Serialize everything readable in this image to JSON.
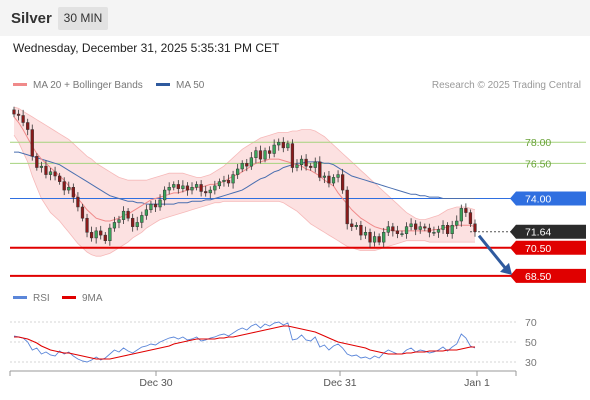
{
  "header": {
    "title": "Silver",
    "timeframe": "30 MIN"
  },
  "datetime": "Wednesday, December 31, 2025 5:35:31 PM CET",
  "legend": [
    {
      "label": "MA 20 + Bollinger Bands",
      "color": "#f08a8a"
    },
    {
      "label": "MA 50",
      "color": "#2f5a9e"
    }
  ],
  "credit": "Research © 2025 Trading Central",
  "rsi_legend": [
    {
      "label": "RSI",
      "color": "#5b86d9"
    },
    {
      "label": "9MA",
      "color": "#e00000"
    }
  ],
  "chart_data": [
    {
      "type": "candlestick",
      "title": "Silver",
      "x_tick_labels": [
        "Dec 30",
        "Dec 31",
        "Jan 1"
      ],
      "ylim": [
        67.5,
        81.0
      ],
      "current_price": 71.64,
      "levels": [
        {
          "value": 78.0,
          "label": "78.00",
          "kind": "resistance"
        },
        {
          "value": 76.5,
          "label": "76.50",
          "kind": "resistance"
        },
        {
          "value": 74.0,
          "label": "74.00",
          "kind": "pivot"
        },
        {
          "value": 71.64,
          "label": "71.64",
          "kind": "current"
        },
        {
          "value": 70.5,
          "label": "70.50",
          "kind": "support"
        },
        {
          "value": 68.5,
          "label": "68.50",
          "kind": "support"
        }
      ],
      "close": [
        80.0,
        79.9,
        79.4,
        78.9,
        77.0,
        76.2,
        76.3,
        75.7,
        75.9,
        75.6,
        75.2,
        74.6,
        74.8,
        74.1,
        73.4,
        72.6,
        71.6,
        71.2,
        71.7,
        71.4,
        71.0,
        71.9,
        72.3,
        72.5,
        73.1,
        72.6,
        72.0,
        72.3,
        72.8,
        73.2,
        73.6,
        73.4,
        73.9,
        74.6,
        74.8,
        75.0,
        74.7,
        74.9,
        74.6,
        74.8,
        75.0,
        74.5,
        74.4,
        74.6,
        74.9,
        75.2,
        75.3,
        75.1,
        75.7,
        76.1,
        76.5,
        76.3,
        76.9,
        77.4,
        76.8,
        77.4,
        77.2,
        77.8,
        78.0,
        77.6,
        77.9,
        76.2,
        76.4,
        76.8,
        76.3,
        76.2,
        76.6,
        75.5,
        75.6,
        75.1,
        75.5,
        75.7,
        74.6,
        72.2,
        72.0,
        72.1,
        71.4,
        71.6,
        70.9,
        71.3,
        70.9,
        71.6,
        72.0,
        71.7,
        71.5,
        71.5,
        72.0,
        72.2,
        71.8,
        72.0,
        71.9,
        71.6,
        71.6,
        71.8,
        72.1,
        71.5,
        72.1,
        72.4,
        73.3,
        73.0,
        72.2,
        71.64
      ],
      "ma20": [
        79.8,
        79.4,
        78.9,
        78.3,
        77.7,
        77.2,
        76.8,
        76.5,
        76.2,
        75.9,
        75.6,
        75.3,
        74.9,
        74.5,
        74.0,
        73.6,
        73.2,
        72.9,
        72.6,
        72.5,
        72.4,
        72.4,
        72.5,
        72.6,
        72.8,
        72.9,
        73.1,
        73.3,
        73.5,
        73.7,
        73.9,
        74.0,
        74.1,
        74.2,
        74.3,
        74.4,
        74.4,
        74.5,
        74.6,
        74.7,
        74.8,
        74.8,
        74.9,
        75.0,
        75.0,
        75.1,
        75.2,
        75.4,
        75.6,
        75.7,
        75.9,
        76.1,
        76.3,
        76.5,
        76.6,
        76.7,
        76.8,
        76.8,
        76.8,
        76.7,
        76.6,
        76.5,
        76.4,
        76.3,
        76.1,
        76.0,
        75.8,
        75.6,
        75.3,
        75.1,
        74.9,
        74.4,
        74.0,
        73.6,
        73.2,
        72.9,
        72.6,
        72.4,
        72.2,
        72.0,
        71.9,
        71.8,
        71.8,
        71.7,
        71.7,
        71.7,
        71.7,
        71.7,
        71.7,
        71.7,
        71.7,
        71.7,
        71.8,
        71.8,
        71.9,
        72.0,
        72.0,
        72.1,
        72.1,
        72.1,
        72.1,
        72.0
      ],
      "ma50": [
        77.3,
        77.3,
        77.2,
        77.1,
        77.0,
        76.9,
        76.8,
        76.7,
        76.6,
        76.5,
        76.4,
        76.2,
        76.0,
        75.8,
        75.6,
        75.4,
        75.2,
        75.0,
        74.8,
        74.6,
        74.4,
        74.2,
        74.1,
        74.0,
        73.9,
        73.8,
        73.8,
        73.7,
        73.7,
        73.6,
        73.6,
        73.6,
        73.6,
        73.6,
        73.6,
        73.6,
        73.7,
        73.7,
        73.7,
        73.8,
        73.8,
        73.8,
        73.9,
        73.9,
        74.0,
        74.1,
        74.2,
        74.3,
        74.4,
        74.5,
        74.6,
        74.8,
        75.0,
        75.2,
        75.4,
        75.5,
        75.7,
        75.9,
        76.0,
        76.2,
        76.3,
        76.4,
        76.5,
        76.5,
        76.6,
        76.6,
        76.6,
        76.6,
        76.5,
        76.5,
        76.4,
        76.2,
        76.0,
        75.8,
        75.6,
        75.5,
        75.4,
        75.3,
        75.2,
        75.1,
        75.0,
        74.9,
        74.8,
        74.7,
        74.6,
        74.5,
        74.4,
        74.3,
        74.3,
        74.2,
        74.2,
        74.1,
        74.1,
        74.1,
        74.0,
        74.0,
        74.0,
        74.0,
        74.0,
        74.0,
        74.0,
        74.0
      ],
      "bb_upper": [
        80.5,
        80.4,
        80.2,
        80.0,
        79.8,
        79.6,
        79.4,
        79.2,
        79.0,
        78.8,
        78.6,
        78.4,
        78.2,
        77.9,
        77.6,
        77.3,
        77.0,
        76.8,
        76.5,
        76.3,
        76.1,
        75.9,
        75.7,
        75.5,
        75.4,
        75.3,
        75.3,
        75.3,
        75.3,
        75.3,
        75.4,
        75.5,
        75.6,
        75.7,
        75.8,
        75.8,
        75.8,
        75.8,
        75.7,
        75.6,
        75.5,
        75.5,
        75.6,
        75.7,
        75.9,
        76.1,
        76.3,
        76.6,
        76.9,
        77.2,
        77.5,
        77.7,
        77.9,
        78.1,
        78.3,
        78.4,
        78.5,
        78.6,
        78.7,
        78.7,
        78.7,
        78.8,
        78.8,
        78.9,
        78.9,
        78.9,
        78.8,
        78.6,
        78.4,
        78.1,
        77.8,
        77.5,
        77.2,
        76.9,
        76.6,
        76.3,
        76.0,
        75.7,
        75.4,
        75.1,
        74.8,
        74.5,
        74.2,
        73.9,
        73.6,
        73.3,
        73.0,
        72.8,
        72.6,
        72.5,
        72.5,
        72.6,
        72.7,
        72.8,
        73.0,
        73.2,
        73.3,
        73.4,
        73.4,
        73.4,
        73.3,
        73.2
      ],
      "bb_lower": [
        78.5,
        78.0,
        77.3,
        76.6,
        75.6,
        74.8,
        74.0,
        73.5,
        73.0,
        72.7,
        72.4,
        72.0,
        71.6,
        71.2,
        70.8,
        70.5,
        70.2,
        70.0,
        69.9,
        69.9,
        70.0,
        70.1,
        70.3,
        70.5,
        70.7,
        70.9,
        71.2,
        71.4,
        71.6,
        71.9,
        72.1,
        72.3,
        72.5,
        72.6,
        72.7,
        72.8,
        72.9,
        73.0,
        73.1,
        73.2,
        73.3,
        73.4,
        73.5,
        73.6,
        73.7,
        73.7,
        73.8,
        73.8,
        73.8,
        73.8,
        73.8,
        73.8,
        73.8,
        73.8,
        73.8,
        73.8,
        73.8,
        73.8,
        73.8,
        73.7,
        73.5,
        73.3,
        73.1,
        72.8,
        72.5,
        72.2,
        72.0,
        71.8,
        71.6,
        71.4,
        71.2,
        71.0,
        70.8,
        70.6,
        70.5,
        70.4,
        70.3,
        70.3,
        70.3,
        70.3,
        70.4,
        70.5,
        70.6,
        70.7,
        70.8,
        70.9,
        71.0,
        71.0,
        71.0,
        71.0,
        71.0,
        70.9,
        70.9,
        70.9,
        70.9,
        70.9,
        70.9,
        70.9,
        70.9,
        70.9,
        70.9,
        70.9
      ]
    },
    {
      "type": "line",
      "title": "RSI",
      "y_ticks": [
        30,
        50,
        70
      ],
      "ylim": [
        24,
        78
      ],
      "series": [
        {
          "name": "RSI",
          "values": [
            56,
            55,
            54,
            50,
            42,
            44,
            38,
            40,
            37,
            36,
            41,
            38,
            40,
            36,
            33,
            31,
            30,
            32,
            35,
            32,
            34,
            38,
            42,
            40,
            44,
            41,
            39,
            42,
            45,
            46,
            48,
            47,
            50,
            52,
            54,
            55,
            53,
            55,
            52,
            53,
            55,
            51,
            52,
            54,
            55,
            57,
            58,
            56,
            59,
            62,
            64,
            62,
            66,
            68,
            64,
            68,
            66,
            69,
            70,
            67,
            69,
            52,
            53,
            57,
            52,
            51,
            55,
            45,
            47,
            42,
            46,
            48,
            44,
            38,
            36,
            37,
            34,
            35,
            33,
            36,
            34,
            39,
            42,
            40,
            38,
            38,
            42,
            44,
            40,
            42,
            41,
            39,
            40,
            42,
            45,
            41,
            45,
            48,
            58,
            54,
            46,
            44
          ]
        },
        {
          "name": "9MA",
          "values": [
            55,
            55,
            54,
            53,
            51,
            49,
            46,
            44,
            42,
            41,
            40,
            39,
            39,
            38,
            37,
            36,
            35,
            34,
            33,
            33,
            33,
            33,
            34,
            35,
            36,
            37,
            38,
            39,
            40,
            41,
            42,
            43,
            44,
            45,
            46,
            48,
            49,
            50,
            51,
            52,
            53,
            53,
            53,
            53,
            53,
            54,
            54,
            55,
            55,
            56,
            57,
            58,
            59,
            60,
            61,
            62,
            63,
            64,
            65,
            66,
            66,
            65,
            64,
            63,
            62,
            61,
            60,
            58,
            56,
            54,
            52,
            50,
            49,
            48,
            47,
            46,
            45,
            44,
            42,
            41,
            40,
            39,
            38,
            38,
            38,
            38,
            39,
            39,
            40,
            40,
            40,
            41,
            41,
            41,
            41,
            42,
            42,
            42,
            43,
            44,
            45,
            45
          ]
        }
      ]
    }
  ]
}
